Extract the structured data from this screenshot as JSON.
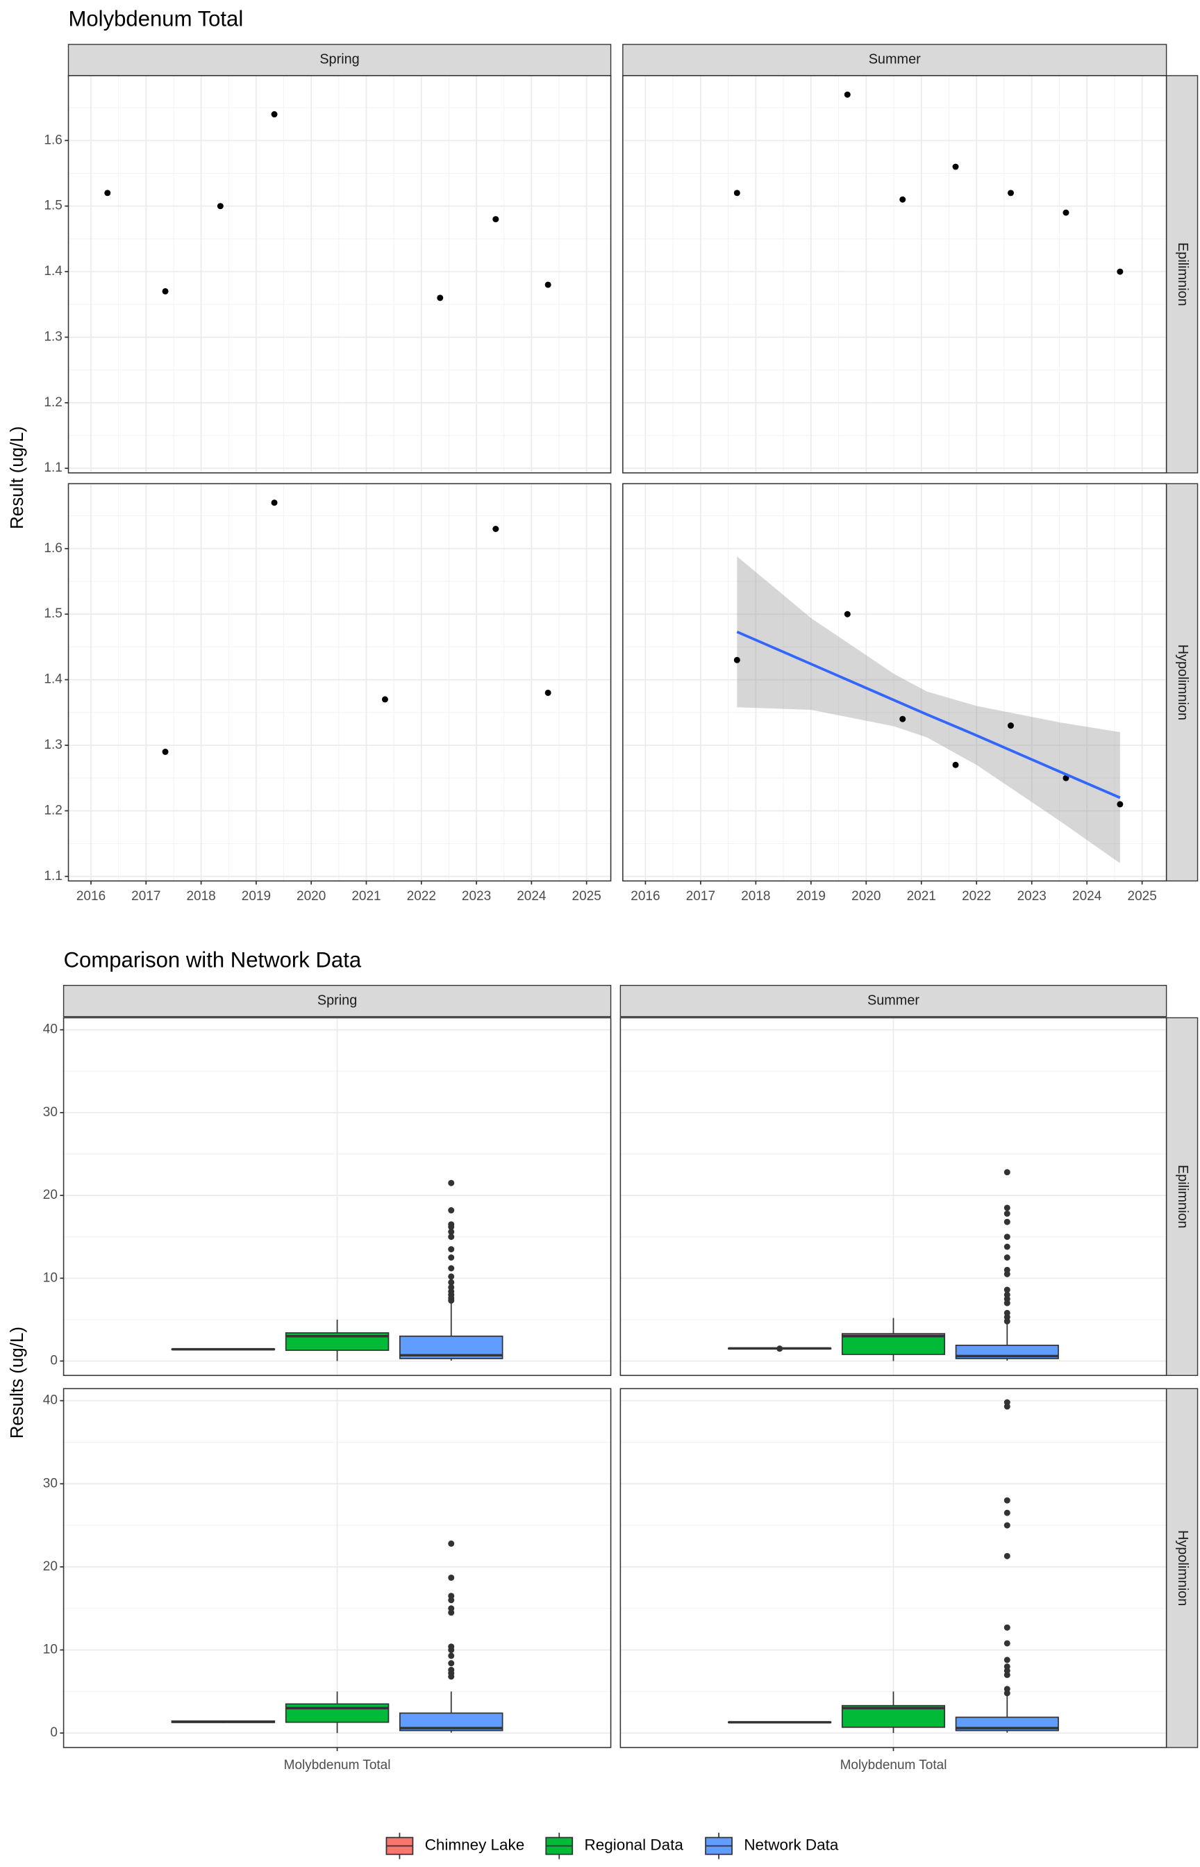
{
  "chart_data": [
    {
      "type": "scatter",
      "title": "Molybdenum Total",
      "y_label": "Result (ug/L)",
      "columns": [
        "Spring",
        "Summer"
      ],
      "rows": [
        "Epilimnion",
        "Hypolimnion"
      ],
      "xlim": [
        2015.59,
        2025.44
      ],
      "xticks": [
        2016,
        2017,
        2018,
        2019,
        2020,
        2021,
        2022,
        2023,
        2024,
        2025
      ],
      "ylim": [
        1.093,
        1.699
      ],
      "yticks": [
        1.1,
        1.2,
        1.3,
        1.4,
        1.5,
        1.6
      ],
      "grid": true,
      "color": "#000000",
      "panels": [
        {
          "x": [
            2016.3,
            2017.35,
            2018.35,
            2019.33,
            2022.34,
            2023.35,
            2024.3
          ],
          "y": [
            1.52,
            1.37,
            1.5,
            1.64,
            1.36,
            1.48,
            1.38
          ]
        },
        {
          "x": [
            2017.66,
            2019.66,
            2020.66,
            2021.62,
            2022.62,
            2023.62,
            2024.6
          ],
          "y": [
            1.52,
            1.67,
            1.51,
            1.56,
            1.52,
            1.49,
            1.4
          ]
        },
        {
          "x": [
            2017.35,
            2019.33,
            2021.34,
            2023.35,
            2024.3
          ],
          "y": [
            1.29,
            1.67,
            1.37,
            1.63,
            1.38
          ]
        },
        {
          "x": [
            2017.66,
            2019.66,
            2020.66,
            2021.62,
            2022.62,
            2023.62,
            2024.6
          ],
          "y": [
            1.43,
            1.5,
            1.34,
            1.27,
            1.33,
            1.25,
            1.21
          ],
          "trend": {
            "color": "#3366FF",
            "band_color": "#999999",
            "x": [
              2017.66,
              2019,
              2020.5,
              2021.1,
              2022,
              2023.5,
              2024.6
            ],
            "y": [
              1.473,
              1.424,
              1.369,
              1.347,
              1.315,
              1.26,
              1.22
            ],
            "lower": [
              1.358,
              1.354,
              1.329,
              1.312,
              1.27,
              1.185,
              1.12
            ],
            "upper": [
              1.588,
              1.494,
              1.409,
              1.382,
              1.36,
              1.335,
              1.32
            ]
          }
        }
      ]
    },
    {
      "type": "box",
      "title": "Comparison with Network Data",
      "y_label": "Results (ug/L)",
      "columns": [
        "Spring",
        "Summer"
      ],
      "rows": [
        "Epilimnion",
        "Hypolimnion"
      ],
      "categories": [
        "Molybdenum Total"
      ],
      "ylim": [
        -1.74,
        41.45
      ],
      "yticks": [
        0,
        10,
        20,
        30,
        40
      ],
      "grid": true,
      "legend": "bottom",
      "series": [
        {
          "name": "Chimney Lake",
          "color": "#F8766D",
          "panels": [
            {
              "min": 1.35,
              "q1": 1.38,
              "median": 1.42,
              "q3": 1.45,
              "max": 1.48,
              "outliers": []
            },
            {
              "min": 1.45,
              "q1": 1.48,
              "median": 1.52,
              "q3": 1.55,
              "max": 1.58,
              "outliers": [
                1.5
              ]
            },
            {
              "min": 1.2,
              "q1": 1.28,
              "median": 1.35,
              "q3": 1.45,
              "max": 1.5,
              "outliers": []
            },
            {
              "min": 1.25,
              "q1": 1.28,
              "median": 1.3,
              "q3": 1.33,
              "max": 1.35,
              "outliers": []
            }
          ]
        },
        {
          "name": "Regional Data",
          "color": "#00BA38",
          "panels": [
            {
              "min": 0,
              "q1": 1.3,
              "median": 3.0,
              "q3": 3.4,
              "max": 5.0,
              "outliers": []
            },
            {
              "min": 0,
              "q1": 0.8,
              "median": 3.0,
              "q3": 3.3,
              "max": 5.2,
              "outliers": []
            },
            {
              "min": 0,
              "q1": 1.3,
              "median": 3.0,
              "q3": 3.5,
              "max": 5.0,
              "outliers": []
            },
            {
              "min": 0,
              "q1": 0.7,
              "median": 3.0,
              "q3": 3.3,
              "max": 5.0,
              "outliers": []
            }
          ]
        },
        {
          "name": "Network Data",
          "color": "#619CFF",
          "panels": [
            {
              "min": 0.05,
              "q1": 0.3,
              "median": 0.7,
              "q3": 3.0,
              "max": 7.0,
              "outliers": [
                7.3,
                7.6,
                8,
                8.4,
                8.9,
                9.5,
                10.2,
                11.2,
                12.5,
                13.5,
                15.0,
                15.6,
                16.2,
                16.5,
                18.2,
                21.5
              ]
            },
            {
              "min": 0.05,
              "q1": 0.3,
              "median": 0.6,
              "q3": 1.9,
              "max": 4.5,
              "outliers": [
                4.8,
                5.3,
                5.8,
                7,
                7.5,
                8,
                8.6,
                10.5,
                11,
                12.5,
                13.8,
                15,
                16.8,
                17.8,
                18.5,
                22.8
              ]
            },
            {
              "min": 0.05,
              "q1": 0.3,
              "median": 0.6,
              "q3": 2.4,
              "max": 5.0,
              "outliers": [
                6.8,
                7.2,
                7.6,
                8.4,
                9.3,
                10.0,
                10.4,
                14.5,
                15.0,
                16.0,
                16.5,
                18.7,
                22.8
              ]
            },
            {
              "min": 0.05,
              "q1": 0.3,
              "median": 0.6,
              "q3": 1.9,
              "max": 4.5,
              "outliers": [
                4.8,
                5.3,
                7,
                7.5,
                8,
                8.8,
                10.8,
                12.7,
                21.3,
                25,
                26.5,
                28,
                39.3,
                39.8
              ]
            }
          ]
        }
      ]
    }
  ]
}
